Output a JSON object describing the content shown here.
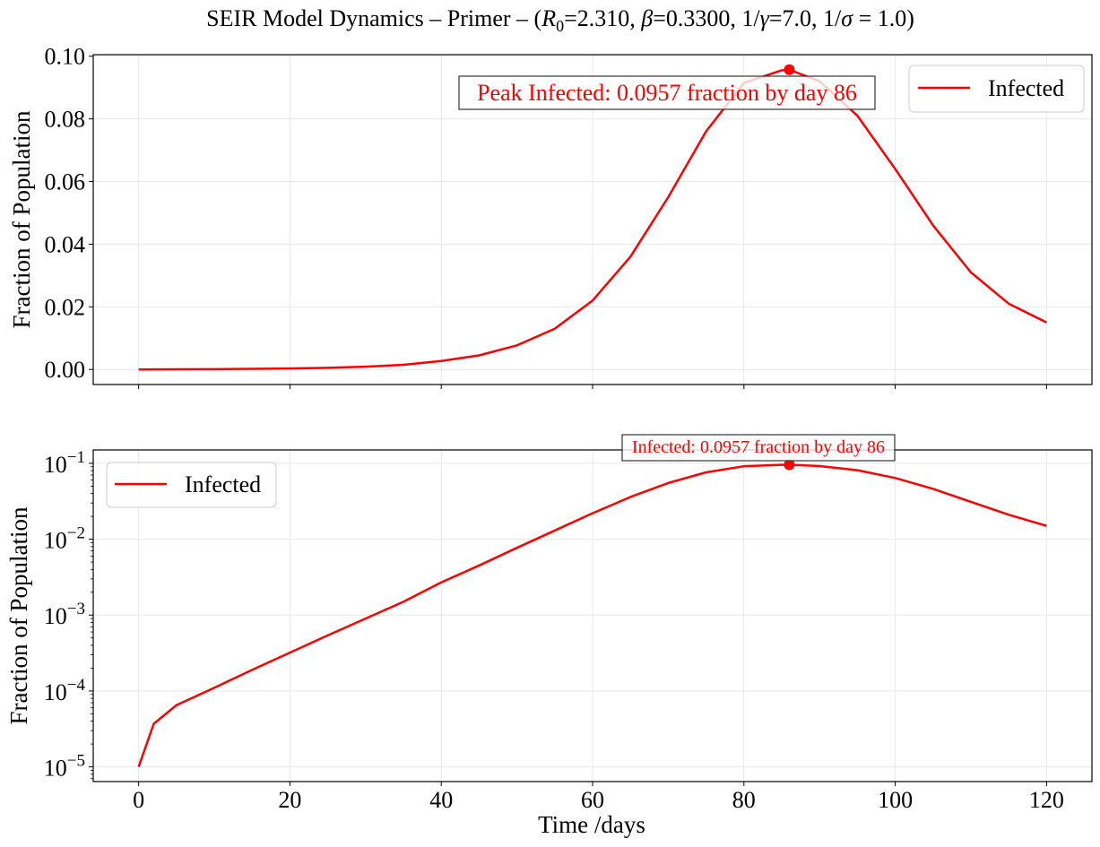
{
  "title": {
    "prefix": "SEIR Model Dynamics – Primer – (",
    "r0_symbol": "R",
    "r0_sub": "0",
    "r0_value": "=2.310, ",
    "beta_symbol": "β",
    "beta_value": "=0.3300, 1/",
    "gamma_symbol": "γ",
    "gamma_value": "=7.0, 1/",
    "sigma_symbol": "σ",
    "sigma_value": " = 1.0)"
  },
  "chart_data": [
    {
      "type": "line",
      "panel": "top",
      "yscale": "linear",
      "ylabel": "Fraction of Population",
      "xlabel": "",
      "xlim": [
        -6,
        126
      ],
      "ylim": [
        -0.0048,
        0.1005
      ],
      "xticks": [
        0,
        20,
        40,
        60,
        80,
        100,
        120
      ],
      "yticks": [
        0.0,
        0.02,
        0.04,
        0.06,
        0.08,
        0.1
      ],
      "ytick_labels": [
        "0.00",
        "0.02",
        "0.04",
        "0.06",
        "0.08",
        "0.10"
      ],
      "grid": true,
      "legend": {
        "position": "top-right",
        "entries": [
          "Infected"
        ]
      },
      "series": [
        {
          "name": "Infected",
          "color": "#ff0000",
          "x": [
            0,
            2,
            5,
            10,
            15,
            20,
            25,
            30,
            35,
            40,
            45,
            50,
            55,
            60,
            65,
            70,
            75,
            80,
            85,
            86,
            90,
            95,
            100,
            105,
            110,
            115,
            120
          ],
          "y": [
            1e-05,
            3.7e-05,
            6.5e-05,
            0.00011,
            0.00019,
            0.00032,
            0.00054,
            0.0009,
            0.0015,
            0.0027,
            0.0045,
            0.0077,
            0.013,
            0.022,
            0.036,
            0.055,
            0.076,
            0.0915,
            0.0955,
            0.0957,
            0.092,
            0.081,
            0.064,
            0.046,
            0.031,
            0.021,
            0.015
          ]
        }
      ],
      "peak": {
        "x": 86,
        "y": 0.0957
      },
      "annotation": "Peak Infected: 0.0957 fraction by day 86"
    },
    {
      "type": "line",
      "panel": "bottom",
      "yscale": "log",
      "ylabel": "Fraction of Population",
      "xlabel": "Time /days",
      "xlim": [
        -6,
        126
      ],
      "ylim": [
        6.4e-06,
        0.15
      ],
      "xticks": [
        0,
        20,
        40,
        60,
        80,
        100,
        120
      ],
      "xtick_labels": [
        "0",
        "20",
        "40",
        "60",
        "80",
        "100",
        "120"
      ],
      "yticks": [
        1e-05,
        0.0001,
        0.001,
        0.01,
        0.1
      ],
      "ytick_exponents": [
        "−5",
        "−4",
        "−3",
        "−2",
        "−1"
      ],
      "ytick_base": "10",
      "grid": true,
      "legend": {
        "position": "top-left",
        "entries": [
          "Infected"
        ]
      },
      "series": [
        {
          "name": "Infected",
          "color": "#ff0000",
          "x": [
            0,
            2,
            5,
            10,
            15,
            20,
            25,
            30,
            35,
            40,
            45,
            50,
            55,
            60,
            65,
            70,
            75,
            80,
            85,
            86,
            90,
            95,
            100,
            105,
            110,
            115,
            120
          ],
          "y": [
            1e-05,
            3.7e-05,
            6.5e-05,
            0.00011,
            0.00019,
            0.00032,
            0.00054,
            0.0009,
            0.0015,
            0.0027,
            0.0045,
            0.0077,
            0.013,
            0.022,
            0.036,
            0.055,
            0.076,
            0.0915,
            0.0955,
            0.0957,
            0.092,
            0.081,
            0.064,
            0.046,
            0.031,
            0.021,
            0.015
          ]
        }
      ],
      "peak": {
        "x": 86,
        "y": 0.0957
      },
      "annotation": "Infected: 0.0957 fraction by day 86"
    }
  ]
}
